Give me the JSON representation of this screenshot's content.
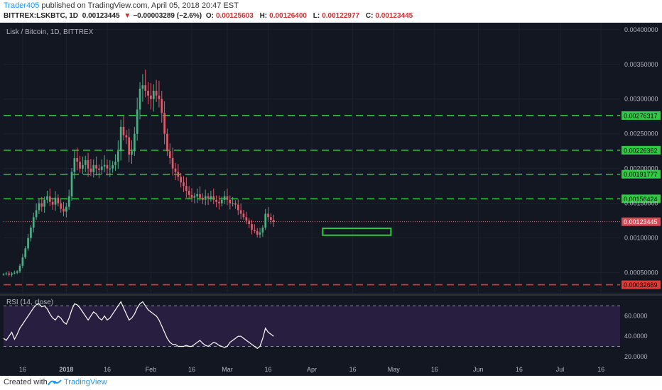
{
  "header": {
    "author": "Trader405",
    "published_text": "published on TradingView.com, April 05, 2018 20:47 EST",
    "symbol": "BITTREX:LSKBTC, 1D",
    "last": "0.00123445",
    "change_arrow": "▼",
    "change": "−0.00003289 (−2.6%)",
    "open_label": "O:",
    "open": "0.00125603",
    "high_label": "H:",
    "high": "0.00126400",
    "low_label": "L:",
    "low": "0.00122977",
    "close_label": "C:",
    "close": "0.00123445"
  },
  "footer": {
    "created_with": "Created with",
    "brand": "TradingView"
  },
  "chart_data": {
    "type": "candlestick",
    "title": "Lisk / Bitcoin, 1D, BITTREX",
    "ylim": [
      0.0002,
      0.0041
    ],
    "y_ticks": [
      "0.00400000",
      "0.00350000",
      "0.00300000",
      "0.00250000",
      "0.00200000",
      "0.00150000",
      "0.00100000",
      "0.00050000"
    ],
    "y_tick_values": [
      0.004,
      0.0035,
      0.003,
      0.0025,
      0.002,
      0.0015,
      0.001,
      0.0005
    ],
    "x_ticks": [
      {
        "label": "16",
        "day": -1
      },
      {
        "label": "2018",
        "day": 15
      },
      {
        "label": "16",
        "day": 30
      },
      {
        "label": "Feb",
        "day": 46
      },
      {
        "label": "16",
        "day": 61
      },
      {
        "label": "Mar",
        "day": 74
      },
      {
        "label": "16",
        "day": 89
      },
      {
        "label": "Apr",
        "day": 105
      },
      {
        "label": "16",
        "day": 120
      },
      {
        "label": "May",
        "day": 135
      },
      {
        "label": "16",
        "day": 150
      },
      {
        "label": "Jun",
        "day": 166
      },
      {
        "label": "16",
        "day": 181
      },
      {
        "label": "Jul",
        "day": 196
      },
      {
        "label": "16",
        "day": 211
      }
    ],
    "x_range_days": [
      -8,
      218
    ],
    "candles_start_day": -8,
    "horizontal_levels": [
      {
        "value": 0.00276317,
        "label": "0.00276317",
        "color": "#2ecc40"
      },
      {
        "value": 0.00226362,
        "label": "0.00226362",
        "color": "#2ecc40"
      },
      {
        "value": 0.00191777,
        "label": "0.00191777",
        "color": "#2ecc40"
      },
      {
        "value": 0.00156424,
        "label": "0.00156424",
        "color": "#2ecc40"
      },
      {
        "value": 0.00032689,
        "label": "0.00032689",
        "color": "#e53935"
      }
    ],
    "current_price": {
      "value": 0.00123445,
      "label": "0.00123445",
      "color": "#e57373"
    },
    "target_box": {
      "day_start": 109,
      "day_end": 134,
      "low": 0.00104,
      "high": 0.00114,
      "color": "#2ecc40"
    },
    "closes": [
      0.00048,
      0.00049,
      0.00047,
      0.00049,
      0.0005,
      0.00052,
      0.0006,
      0.00072,
      0.00085,
      0.001,
      0.00115,
      0.0013,
      0.0014,
      0.0015,
      0.00145,
      0.00155,
      0.0016,
      0.00152,
      0.00148,
      0.00158,
      0.0015,
      0.00142,
      0.00138,
      0.00145,
      0.0016,
      0.00195,
      0.00215,
      0.0021,
      0.002,
      0.00205,
      0.00212,
      0.002,
      0.00195,
      0.00205,
      0.002,
      0.00198,
      0.00203,
      0.00205,
      0.002,
      0.002,
      0.00205,
      0.0021,
      0.00225,
      0.0026,
      0.00248,
      0.00245,
      0.0022,
      0.00225,
      0.0025,
      0.00285,
      0.00315,
      0.0032,
      0.00312,
      0.00305,
      0.003,
      0.00312,
      0.00305,
      0.003,
      0.0028,
      0.0025,
      0.00225,
      0.00215,
      0.002,
      0.00195,
      0.00188,
      0.0018,
      0.00175,
      0.00168,
      0.00162,
      0.00158,
      0.0016,
      0.00163,
      0.00158,
      0.00155,
      0.0016,
      0.00157,
      0.0016,
      0.00155,
      0.00152,
      0.0015,
      0.00155,
      0.0016,
      0.00155,
      0.0015,
      0.0015,
      0.00148,
      0.0014,
      0.00135,
      0.0013,
      0.00125,
      0.0012,
      0.00112,
      0.0011,
      0.00105,
      0.00108,
      0.00115,
      0.00135,
      0.0013,
      0.00126,
      0.00123445
    ],
    "rsi": {
      "label": "RSI (14, close)",
      "ylim": [
        15,
        80
      ],
      "y_ticks": [
        "60.0000",
        "40.0000",
        "20.0000"
      ],
      "y_tick_values": [
        60,
        40,
        20
      ],
      "bands": [
        70,
        30
      ],
      "values": [
        38,
        36,
        40,
        44,
        37,
        42,
        48,
        52,
        56,
        60,
        64,
        68,
        71,
        72,
        69,
        70,
        67,
        62,
        58,
        56,
        60,
        58,
        54,
        52,
        58,
        66,
        72,
        71,
        68,
        64,
        60,
        56,
        60,
        64,
        62,
        58,
        56,
        60,
        56,
        58,
        62,
        66,
        70,
        74,
        68,
        62,
        56,
        58,
        62,
        68,
        72,
        74,
        70,
        66,
        64,
        62,
        60,
        56,
        50,
        44,
        38,
        34,
        32,
        32,
        30,
        30,
        30,
        31,
        30,
        30,
        32,
        34,
        36,
        33,
        31,
        30,
        32,
        34,
        33,
        31,
        30,
        29,
        30,
        34,
        36,
        38,
        40,
        40,
        38,
        36,
        34,
        32,
        30,
        28,
        30,
        38,
        48,
        44,
        42,
        40
      ]
    }
  }
}
